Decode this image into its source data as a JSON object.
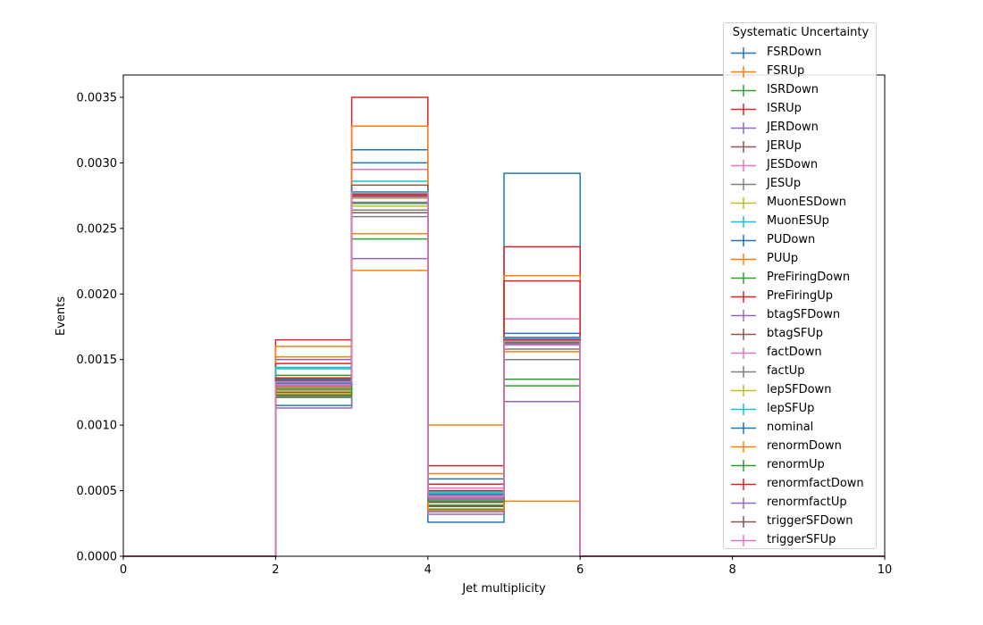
{
  "chart_data": {
    "type": "histogram",
    "xlabel": "Jet multiplicity",
    "ylabel": "Events",
    "xlim": [
      0,
      10
    ],
    "ylim": [
      0,
      0.00367
    ],
    "x_ticks": [
      0,
      2,
      4,
      6,
      8,
      10
    ],
    "y_ticks": [
      0.0,
      0.0005,
      0.001,
      0.0015,
      0.002,
      0.0025,
      0.003,
      0.0035
    ],
    "y_tick_labels": [
      "0.0000",
      "0.0005",
      "0.0010",
      "0.0015",
      "0.0020",
      "0.0025",
      "0.0030",
      "0.0035"
    ],
    "bin_edges": [
      0,
      2,
      3,
      4,
      5,
      6,
      10
    ],
    "grid": false,
    "legend": {
      "title": "Systematic Uncertainty",
      "position": "upper right, outside plot"
    },
    "series": [
      {
        "name": "FSRDown",
        "color": "#1f77b4",
        "values": [
          0,
          0.00115,
          0.0031,
          0.00026,
          0.00292,
          0
        ]
      },
      {
        "name": "FSRUp",
        "color": "#ff7f0e",
        "values": [
          0,
          0.00152,
          0.00218,
          0.001,
          0.00042,
          0
        ]
      },
      {
        "name": "ISRDown",
        "color": "#2ca02c",
        "values": [
          0,
          0.00128,
          0.00242,
          0.00039,
          0.0013,
          0
        ]
      },
      {
        "name": "ISRUp",
        "color": "#d62728",
        "values": [
          0,
          0.00165,
          0.0035,
          0.00055,
          0.00236,
          0
        ]
      },
      {
        "name": "JERDown",
        "color": "#9467bd",
        "values": [
          0,
          0.0015,
          0.00227,
          0.00034,
          0.00118,
          0
        ]
      },
      {
        "name": "JERUp",
        "color": "#8c564b",
        "values": [
          0,
          0.00125,
          0.00262,
          0.00041,
          0.00163,
          0
        ]
      },
      {
        "name": "JESDown",
        "color": "#e377c2",
        "values": [
          0,
          0.00133,
          0.00295,
          0.00052,
          0.00181,
          0
        ]
      },
      {
        "name": "JESUp",
        "color": "#7f7f7f",
        "values": [
          0,
          0.00121,
          0.00259,
          0.00047,
          0.0015,
          0
        ]
      },
      {
        "name": "MuonESDown",
        "color": "#bcbd22",
        "values": [
          0,
          0.00124,
          0.00267,
          0.00044,
          0.00162,
          0
        ]
      },
      {
        "name": "MuonESUp",
        "color": "#17becf",
        "values": [
          0,
          0.00143,
          0.00286,
          0.00048,
          0.00164,
          0
        ]
      },
      {
        "name": "PUDown",
        "color": "#1f77b4",
        "values": [
          0,
          0.00135,
          0.003,
          0.00059,
          0.0017,
          0
        ]
      },
      {
        "name": "PUUp",
        "color": "#ff7f0e",
        "values": [
          0,
          0.0016,
          0.00328,
          0.00063,
          0.00214,
          0
        ]
      },
      {
        "name": "PreFiringDown",
        "color": "#2ca02c",
        "values": [
          0,
          0.00138,
          0.00277,
          0.00036,
          0.00135,
          0
        ]
      },
      {
        "name": "PreFiringUp",
        "color": "#d62728",
        "values": [
          0,
          0.00147,
          0.00275,
          0.00069,
          0.0021,
          0
        ]
      },
      {
        "name": "btagSFDown",
        "color": "#9467bd",
        "values": [
          0,
          0.00113,
          0.0027,
          0.00032,
          0.00167,
          0
        ]
      },
      {
        "name": "btagSFUp",
        "color": "#8c564b",
        "values": [
          0,
          0.00123,
          0.00283,
          0.00038,
          0.00162,
          0
        ]
      },
      {
        "name": "factDown",
        "color": "#e377c2",
        "values": [
          0,
          0.00131,
          0.00276,
          0.00045,
          0.00161,
          0
        ]
      },
      {
        "name": "factUp",
        "color": "#7f7f7f",
        "values": [
          0,
          0.00127,
          0.00264,
          0.00043,
          0.00158,
          0
        ]
      },
      {
        "name": "lepSFDown",
        "color": "#bcbd22",
        "values": [
          0,
          0.00126,
          0.00273,
          0.00046,
          0.00163,
          0
        ]
      },
      {
        "name": "lepSFUp",
        "color": "#17becf",
        "values": [
          0,
          0.00144,
          0.00278,
          0.00049,
          0.00166,
          0
        ]
      },
      {
        "name": "nominal",
        "color": "#1f77b4",
        "values": [
          0,
          0.00132,
          0.00276,
          0.00047,
          0.00164,
          0
        ]
      },
      {
        "name": "renormDown",
        "color": "#ff7f0e",
        "values": [
          0,
          0.00129,
          0.00246,
          0.00035,
          0.00156,
          0
        ]
      },
      {
        "name": "renormUp",
        "color": "#2ca02c",
        "values": [
          0,
          0.00122,
          0.00269,
          0.00042,
          0.00163,
          0
        ]
      },
      {
        "name": "renormfactDown",
        "color": "#d62728",
        "values": [
          0,
          0.00136,
          0.00277,
          0.0005,
          0.00165,
          0
        ]
      },
      {
        "name": "renormfactUp",
        "color": "#9467bd",
        "values": [
          0,
          0.0013,
          0.00274,
          0.00044,
          0.00162,
          0
        ]
      },
      {
        "name": "triggerSFDown",
        "color": "#8c564b",
        "values": [
          0,
          0.00134,
          0.00276,
          0.00046,
          0.00164,
          0
        ]
      },
      {
        "name": "triggerSFUp",
        "color": "#e377c2",
        "values": [
          0,
          0.00133,
          0.00277,
          0.00046,
          0.00164,
          0
        ]
      }
    ]
  }
}
